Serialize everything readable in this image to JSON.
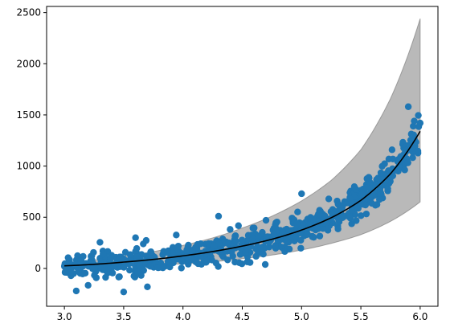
{
  "chart_data": {
    "type": "scatter",
    "title": "",
    "xlabel": "",
    "ylabel": "",
    "xlim": [
      2.85,
      6.15
    ],
    "ylim": [
      -370,
      2560
    ],
    "grid": false,
    "legend": "none",
    "x_ticks": [
      3.0,
      3.5,
      4.0,
      4.5,
      5.0,
      5.5,
      6.0
    ],
    "x_tick_labels": [
      "3.0",
      "3.5",
      "4.0",
      "4.5",
      "5.0",
      "5.5",
      "6.0"
    ],
    "y_ticks": [
      0,
      500,
      1000,
      1500,
      2000,
      2500
    ],
    "y_tick_labels": [
      "0",
      "500",
      "1000",
      "1500",
      "2000",
      "2500"
    ],
    "colors": {
      "points": "#1f77b4",
      "fit_line": "#000000",
      "band_fill": "#808080",
      "axes": "#000000"
    },
    "fit_curve": {
      "x": [
        3.0,
        3.25,
        3.5,
        3.75,
        4.0,
        4.25,
        4.5,
        4.75,
        5.0,
        5.25,
        5.5,
        5.75,
        6.0
      ],
      "y": [
        25,
        40,
        62,
        88,
        123,
        165,
        218,
        285,
        375,
        495,
        665,
        925,
        1340
      ]
    },
    "band": {
      "x": [
        3.0,
        3.5,
        4.0,
        4.5,
        5.0,
        5.25,
        5.5,
        5.75,
        6.0
      ],
      "upper": [
        55,
        120,
        225,
        395,
        660,
        860,
        1160,
        1660,
        2440
      ],
      "lower": [
        10,
        22,
        45,
        95,
        180,
        245,
        330,
        460,
        650
      ]
    },
    "scatter_model": {
      "count": 700,
      "x_range": [
        3.0,
        6.0
      ],
      "noise_sd": 65,
      "seed": 7
    },
    "scatter_highlights": {
      "x": [
        3.1,
        3.2,
        3.5,
        3.7,
        4.3,
        4.6,
        4.7,
        5.0,
        5.9,
        5.95,
        6.0,
        3.3,
        3.6
      ],
      "y": [
        -220,
        -165,
        -230,
        -180,
        510,
        395,
        470,
        730,
        1580,
        1440,
        1420,
        255,
        300
      ]
    }
  }
}
